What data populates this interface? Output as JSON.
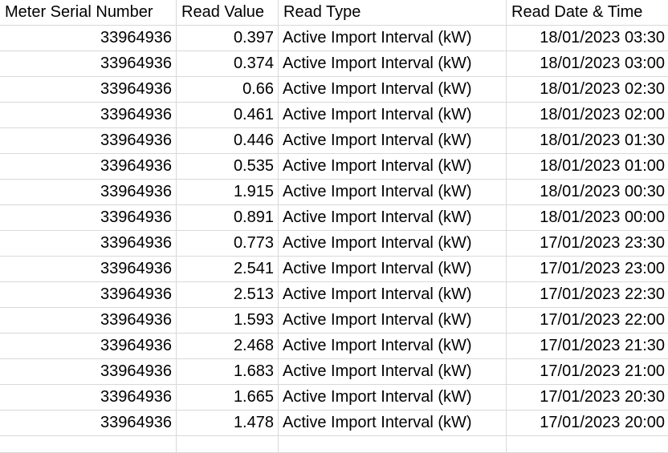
{
  "headers": [
    "Meter Serial Number",
    "Read Value",
    "Read Type",
    "Read Date & Time"
  ],
  "rows": [
    [
      "33964936",
      "0.397",
      "Active Import Interval (kW)",
      "18/01/2023 03:30"
    ],
    [
      "33964936",
      "0.374",
      "Active Import Interval (kW)",
      "18/01/2023 03:00"
    ],
    [
      "33964936",
      "0.66",
      "Active Import Interval (kW)",
      "18/01/2023 02:30"
    ],
    [
      "33964936",
      "0.461",
      "Active Import Interval (kW)",
      "18/01/2023 02:00"
    ],
    [
      "33964936",
      "0.446",
      "Active Import Interval (kW)",
      "18/01/2023 01:30"
    ],
    [
      "33964936",
      "0.535",
      "Active Import Interval (kW)",
      "18/01/2023 01:00"
    ],
    [
      "33964936",
      "1.915",
      "Active Import Interval (kW)",
      "18/01/2023 00:30"
    ],
    [
      "33964936",
      "0.891",
      "Active Import Interval (kW)",
      "18/01/2023 00:00"
    ],
    [
      "33964936",
      "0.773",
      "Active Import Interval (kW)",
      "17/01/2023 23:30"
    ],
    [
      "33964936",
      "2.541",
      "Active Import Interval (kW)",
      "17/01/2023 23:00"
    ],
    [
      "33964936",
      "2.513",
      "Active Import Interval (kW)",
      "17/01/2023 22:30"
    ],
    [
      "33964936",
      "1.593",
      "Active Import Interval (kW)",
      "17/01/2023 22:00"
    ],
    [
      "33964936",
      "2.468",
      "Active Import Interval (kW)",
      "17/01/2023 21:30"
    ],
    [
      "33964936",
      "1.683",
      "Active Import Interval (kW)",
      "17/01/2023 21:00"
    ],
    [
      "33964936",
      "1.665",
      "Active Import Interval (kW)",
      "17/01/2023 20:30"
    ],
    [
      "33964936",
      "1.478",
      "Active Import Interval (kW)",
      "17/01/2023 20:00"
    ]
  ],
  "colors": {
    "gridline": "#d9d9d9",
    "text": "#000000",
    "background": "#ffffff"
  }
}
